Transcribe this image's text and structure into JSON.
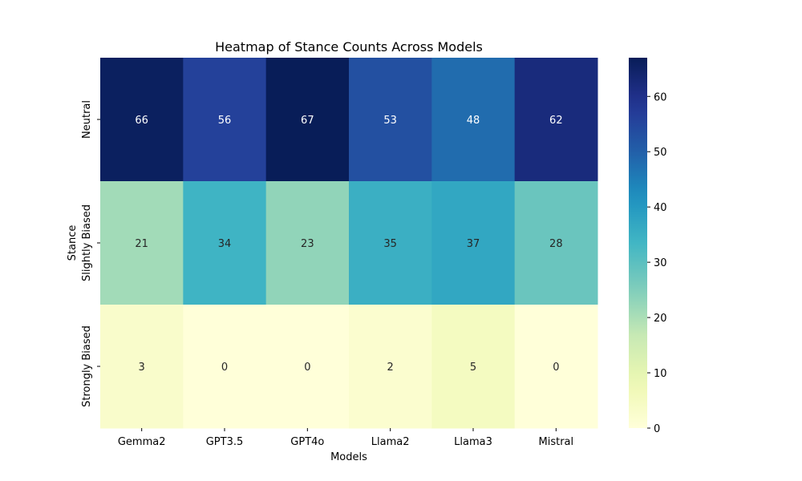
{
  "chart_data": {
    "type": "heatmap",
    "title": "Heatmap of Stance Counts Across Models",
    "xlabel": "Models",
    "ylabel": "Stance",
    "x_categories": [
      "Gemma2",
      "GPT3.5",
      "GPT4o",
      "Llama2",
      "Llama3",
      "Mistral"
    ],
    "y_categories": [
      "Neutral",
      "Slightly Biased",
      "Strongly Biased"
    ],
    "values": [
      [
        66,
        56,
        67,
        53,
        48,
        62
      ],
      [
        21,
        34,
        23,
        35,
        37,
        28
      ],
      [
        3,
        0,
        0,
        2,
        5,
        0
      ]
    ],
    "colormap": "YlGnBu",
    "colorbar": {
      "range": [
        0,
        67
      ],
      "ticks": [
        0,
        10,
        20,
        30,
        40,
        50,
        60
      ]
    },
    "annotations": true,
    "grid": false
  }
}
